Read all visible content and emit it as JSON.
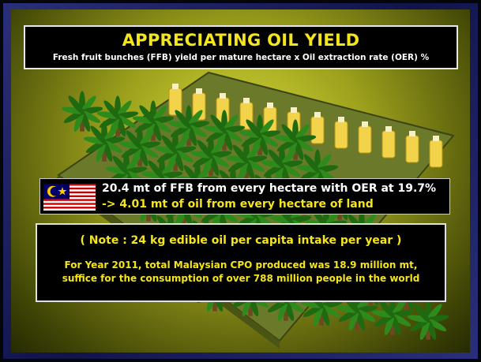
{
  "header": {
    "title": "APPRECIATING OIL YIELD",
    "subtitle": "Fresh fruit bunches (FFB) yield per mature hectare x Oil extraction rate (OER) %"
  },
  "yield": {
    "line1": "20.4 mt of FFB from every hectare with OER at 19.7%",
    "line2": "-> 4.01 mt of oil from every hectare of land"
  },
  "note": {
    "heading": "( Note : 24 kg edible oil per capita intake per year )",
    "body": [
      "For Year 2011, total Malaysian CPO produced was 18.9 million mt,",
      "suffice for the consumption of over 788 million people in the world"
    ]
  }
}
